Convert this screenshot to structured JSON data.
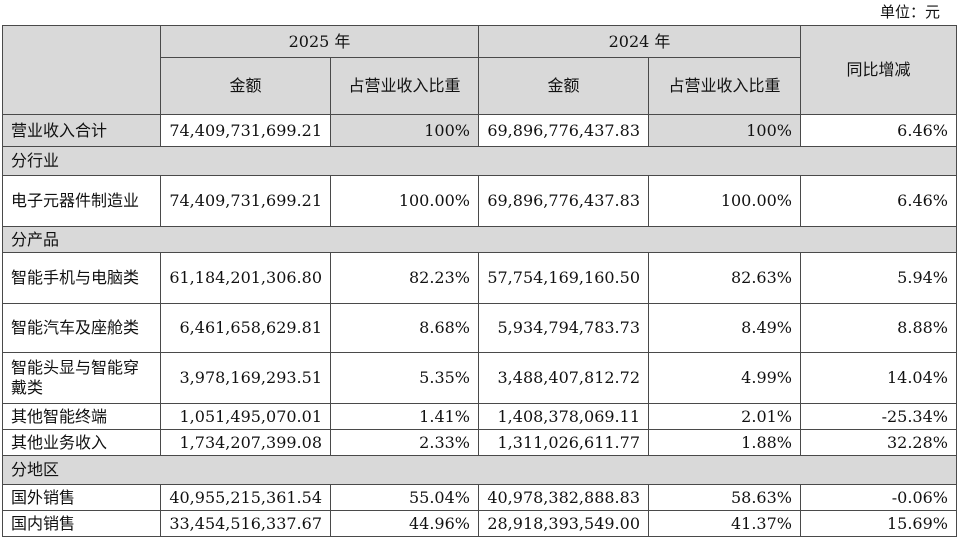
{
  "unit_label": "单位：元",
  "header": {
    "year1": "2025 年",
    "year2": "2024 年",
    "amount": "金额",
    "share": "占营业收入比重",
    "yoy": "同比增减"
  },
  "rows": {
    "total": {
      "label": "营业收入合计",
      "a1": "74,409,731,699.21",
      "s1": "100%",
      "a2": "69,896,776,437.83",
      "s2": "100%",
      "yoy": "6.46%"
    },
    "sec_industry": "分行业",
    "ind_electronics": {
      "label": "电子元器件制造业",
      "a1": "74,409,731,699.21",
      "s1": "100.00%",
      "a2": "69,896,776,437.83",
      "s2": "100.00%",
      "yoy": "6.46%"
    },
    "sec_product": "分产品",
    "p_phone_pc": {
      "label": "智能手机与电脑类",
      "a1": "61,184,201,306.80",
      "s1": "82.23%",
      "a2": "57,754,169,160.50",
      "s2": "82.63%",
      "yoy": "5.94%"
    },
    "p_car": {
      "label": "智能汽车及座舱类",
      "a1": "6,461,658,629.81",
      "s1": "8.68%",
      "a2": "5,934,794,783.73",
      "s2": "8.49%",
      "yoy": "8.88%"
    },
    "p_wearable": {
      "label": "智能头显与智能穿戴类",
      "a1": "3,978,169,293.51",
      "s1": "5.35%",
      "a2": "3,488,407,812.72",
      "s2": "4.99%",
      "yoy": "14.04%"
    },
    "p_other_terminal": {
      "label": "其他智能终端",
      "a1": "1,051,495,070.01",
      "s1": "1.41%",
      "a2": "1,408,378,069.11",
      "s2": "2.01%",
      "yoy": "-25.34%"
    },
    "p_other_business": {
      "label": "其他业务收入",
      "a1": "1,734,207,399.08",
      "s1": "2.33%",
      "a2": "1,311,026,611.77",
      "s2": "1.88%",
      "yoy": "32.28%"
    },
    "sec_region": "分地区",
    "r_overseas": {
      "label": "国外销售",
      "a1": "40,955,215,361.54",
      "s1": "55.04%",
      "a2": "40,978,382,888.83",
      "s2": "58.63%",
      "yoy": "-0.06%"
    },
    "r_domestic": {
      "label": "国内销售",
      "a1": "33,454,516,337.67",
      "s1": "44.96%",
      "a2": "28,918,393,549.00",
      "s2": "41.37%",
      "yoy": "15.69%"
    }
  }
}
